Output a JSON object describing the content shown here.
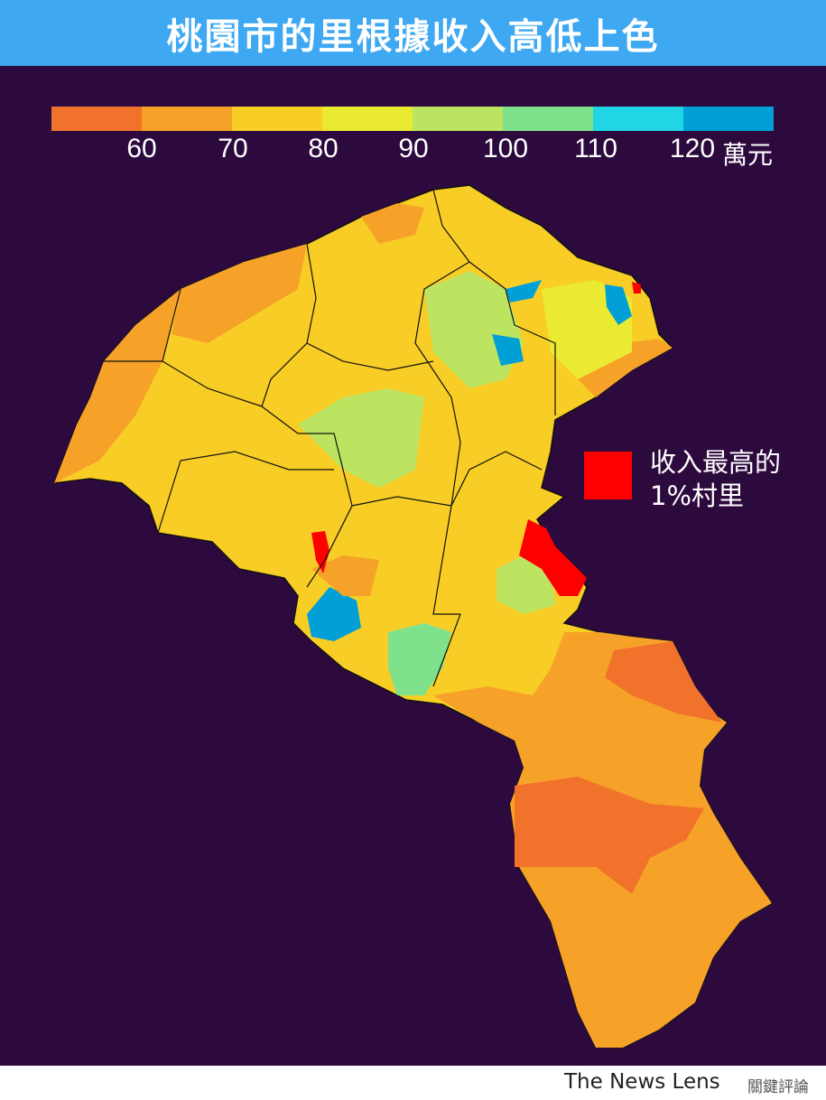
{
  "header": {
    "title": "桃園市的里根據收入高低上色"
  },
  "legend": {
    "colors": [
      "#f1722a",
      "#f6a229",
      "#f8cd25",
      "#eaea31",
      "#bde461",
      "#80e18c",
      "#1fd5e6",
      "#00a0d6"
    ],
    "ticks": [
      "60",
      "70",
      "80",
      "90",
      "100",
      "110",
      "120"
    ],
    "unit": "萬元"
  },
  "map": {
    "highlight_color": "#ff0000",
    "background": "#2d0a3d"
  },
  "annotation": {
    "line1": "收入最高的",
    "line2": "1%村里"
  },
  "footer": {
    "brand": "The News Lens",
    "brand_zh": "關鍵評論"
  }
}
